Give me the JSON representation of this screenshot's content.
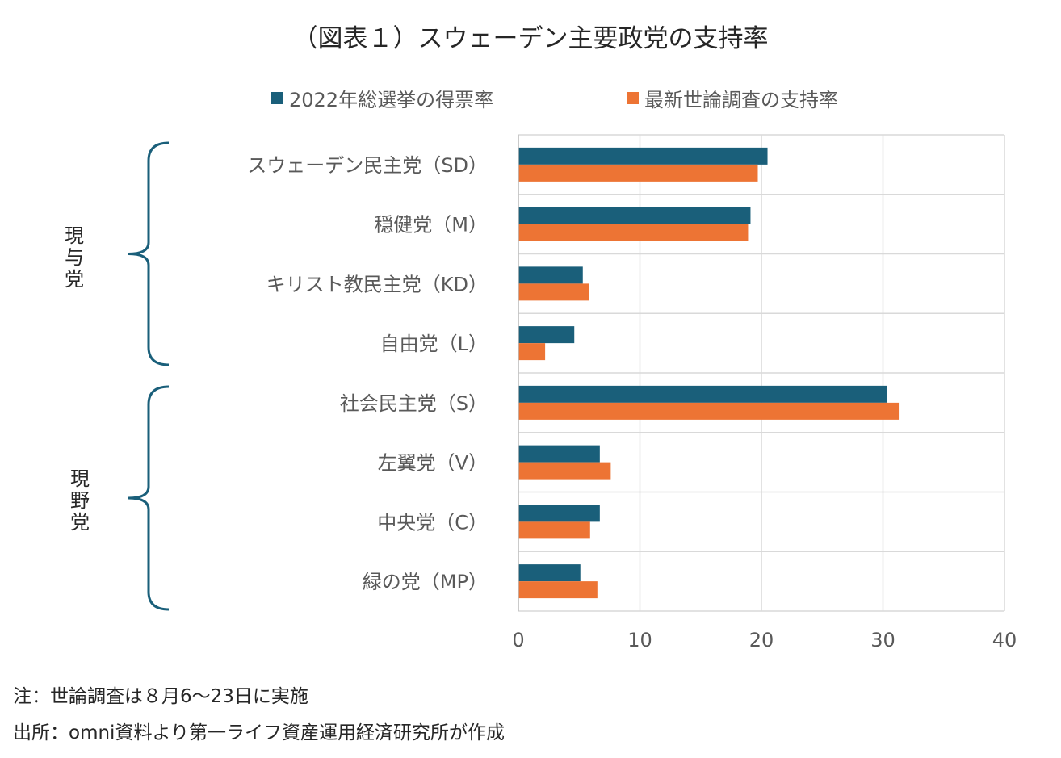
{
  "title": "（図表１）スウェーデン主要政党の支持率",
  "chart_data": {
    "type": "bar",
    "orientation": "horizontal",
    "categories": [
      "スウェーデン民主党（SD）",
      "穏健党（M）",
      "キリスト教民主党（KD）",
      "自由党（L）",
      "社会民主党（S）",
      "左翼党（V）",
      "中央党（C）",
      "緑の党（MP）"
    ],
    "series": [
      {
        "name": "2022年総選挙の得票率",
        "color": "#1a5f7a",
        "values": [
          20.5,
          19.1,
          5.3,
          4.6,
          30.3,
          6.7,
          6.7,
          5.1
        ]
      },
      {
        "name": "最新世論調査の支持率",
        "color": "#ed7434",
        "values": [
          19.7,
          18.9,
          5.8,
          2.2,
          31.3,
          7.6,
          5.9,
          6.5
        ]
      }
    ],
    "xlim": [
      0,
      40
    ],
    "xticks": [
      "0",
      "10",
      "20",
      "30",
      "40"
    ],
    "grid": true,
    "legend": "top"
  },
  "groups": [
    {
      "label": [
        "現",
        "与",
        "党"
      ],
      "color": "#1a5f7a"
    },
    {
      "label": [
        "現",
        "野",
        "党"
      ],
      "color": "#1a5f7a"
    }
  ],
  "notes": {
    "note": "注：世論調査は８月6～23日に実施",
    "source": "出所：omni資料より第一ライフ資産運用経済研究所が作成"
  }
}
